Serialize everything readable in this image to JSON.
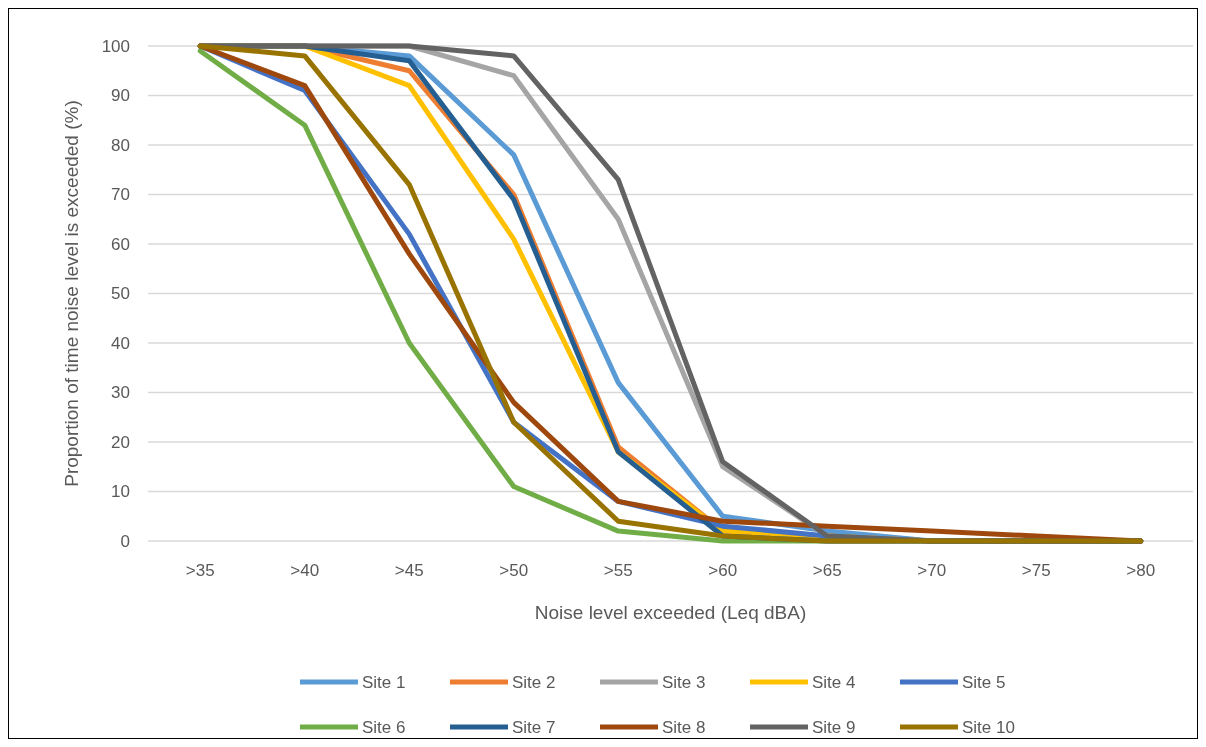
{
  "chart_data": {
    "type": "line",
    "xlabel": "Noise level exceeded (Leq dBA)",
    "ylabel": "Proportion of time noise level is exceeded (%)",
    "categories": [
      ">35",
      ">40",
      ">45",
      ">50",
      ">55",
      ">60",
      ">65",
      ">70",
      ">75",
      ">80"
    ],
    "ylim": [
      0,
      100
    ],
    "yticks": [
      0,
      10,
      20,
      30,
      40,
      50,
      60,
      70,
      80,
      90,
      100
    ],
    "grid": "y",
    "legend": "bottom",
    "marker": "none",
    "line_style": "solid",
    "series": [
      {
        "name": "Site 1",
        "color": "#5b9bd5",
        "values": [
          100,
          100,
          98,
          78,
          32,
          5,
          2,
          0,
          0,
          0
        ]
      },
      {
        "name": "Site 2",
        "color": "#ed7d31",
        "values": [
          100,
          100,
          95,
          70,
          19,
          2,
          1,
          0,
          0,
          0
        ]
      },
      {
        "name": "Site 3",
        "color": "#a5a5a5",
        "values": [
          100,
          100,
          100,
          94,
          65,
          15,
          1,
          0,
          0,
          0
        ]
      },
      {
        "name": "Site 4",
        "color": "#ffc000",
        "values": [
          100,
          100,
          92,
          61,
          18,
          2,
          1,
          0,
          null,
          null
        ]
      },
      {
        "name": "Site 5",
        "color": "#4472c4",
        "values": [
          100,
          91,
          62,
          24,
          8,
          3,
          1,
          0,
          0,
          0
        ]
      },
      {
        "name": "Site 6",
        "color": "#70ad47",
        "values": [
          99,
          84,
          40,
          11,
          2,
          0,
          0,
          0,
          0,
          0
        ]
      },
      {
        "name": "Site 7",
        "color": "#255e91",
        "values": [
          100,
          100,
          97,
          69,
          18,
          1,
          0,
          0,
          0,
          0
        ]
      },
      {
        "name": "Site 8",
        "color": "#9e480e",
        "values": [
          100,
          92,
          58,
          28,
          8,
          4,
          3,
          2,
          1,
          0
        ]
      },
      {
        "name": "Site 9",
        "color": "#636363",
        "values": [
          100,
          100,
          100,
          98,
          73,
          16,
          1,
          0,
          0,
          0
        ]
      },
      {
        "name": "Site 10",
        "color": "#997300",
        "values": [
          100,
          98,
          72,
          24,
          4,
          1,
          0,
          0,
          0,
          0
        ]
      }
    ]
  }
}
